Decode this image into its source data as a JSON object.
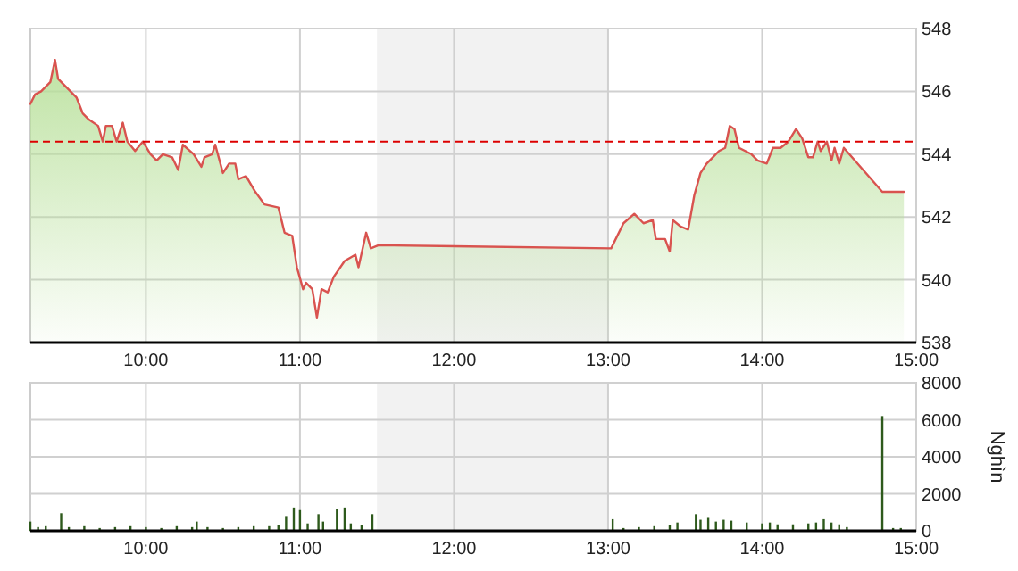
{
  "chart_data": [
    {
      "type": "area",
      "xlim": [
        9.25,
        15
      ],
      "xticks": [
        {
          "value": 10,
          "label": "10:00"
        },
        {
          "value": 11,
          "label": "11:00"
        },
        {
          "value": 12,
          "label": "12:00"
        },
        {
          "value": 13,
          "label": "13:00"
        },
        {
          "value": 14,
          "label": "14:00"
        },
        {
          "value": 15,
          "label": "15:00"
        }
      ],
      "ylim": [
        538,
        548
      ],
      "yticks": [
        538,
        540,
        542,
        544,
        546,
        548
      ],
      "grid": true,
      "ref_lines": [
        {
          "axis": "y",
          "value": 544.4,
          "color": "#dd0000",
          "line_style": "dashed"
        }
      ],
      "bands": [
        {
          "axis": "x",
          "from": 11.5,
          "to": 13,
          "color": "#f2f2f2"
        }
      ],
      "series": [
        {
          "color": "#d9534f",
          "x": [
            9.25,
            9.28,
            9.32,
            9.38,
            9.41,
            9.43,
            9.49,
            9.55,
            9.59,
            9.63,
            9.69,
            9.72,
            9.74,
            9.78,
            9.81,
            9.85,
            9.88,
            9.93,
            9.98,
            10.03,
            10.07,
            10.11,
            10.17,
            10.21,
            10.24,
            10.31,
            10.36,
            10.38,
            10.43,
            10.45,
            10.5,
            10.54,
            10.58,
            10.6,
            10.65,
            10.71,
            10.77,
            10.86,
            10.9,
            10.95,
            10.98,
            11.02,
            11.04,
            11.08,
            11.11,
            11.14,
            11.18,
            11.22,
            11.29,
            11.36,
            11.38,
            11.43,
            11.46,
            11.51,
            13.02,
            13.1,
            13.17,
            13.23,
            13.29,
            13.31,
            13.37,
            13.4,
            13.42,
            13.47,
            13.52,
            13.56,
            13.6,
            13.64,
            13.68,
            13.72,
            13.76,
            13.79,
            13.82,
            13.85,
            13.93,
            13.97,
            14.03,
            14.07,
            14.12,
            14.17,
            14.22,
            14.26,
            14.3,
            14.33,
            14.36,
            14.38,
            14.42,
            14.45,
            14.47,
            14.5,
            14.53,
            14.78,
            14.92
          ],
          "values": [
            545.6,
            545.9,
            546.0,
            546.3,
            547.0,
            546.4,
            546.1,
            545.8,
            545.3,
            545.1,
            544.9,
            544.4,
            544.9,
            544.9,
            544.4,
            545.0,
            544.4,
            544.1,
            544.4,
            544.0,
            543.8,
            544.0,
            543.9,
            543.5,
            544.3,
            544.0,
            543.6,
            543.9,
            544.0,
            544.3,
            543.4,
            543.7,
            543.7,
            543.2,
            543.3,
            542.8,
            542.4,
            542.3,
            541.5,
            541.4,
            540.4,
            539.7,
            539.9,
            539.7,
            538.8,
            539.7,
            539.6,
            540.1,
            540.6,
            540.8,
            540.4,
            541.5,
            541.0,
            541.1,
            541.0,
            541.8,
            542.1,
            541.8,
            541.9,
            541.3,
            541.3,
            540.9,
            541.9,
            541.7,
            541.6,
            542.7,
            543.4,
            543.7,
            543.9,
            544.1,
            544.2,
            544.9,
            544.8,
            544.2,
            544.0,
            543.8,
            543.7,
            544.2,
            544.2,
            544.4,
            544.8,
            544.5,
            543.9,
            543.9,
            544.4,
            544.1,
            544.4,
            543.8,
            544.2,
            543.7,
            544.2,
            542.8,
            542.8
          ]
        }
      ]
    },
    {
      "type": "bar",
      "ylabel": "Nghìn",
      "xlim": [
        9.25,
        15
      ],
      "xticks": [
        {
          "value": 10,
          "label": "10:00"
        },
        {
          "value": 11,
          "label": "11:00"
        },
        {
          "value": 12,
          "label": "12:00"
        },
        {
          "value": 13,
          "label": "13:00"
        },
        {
          "value": 14,
          "label": "14:00"
        },
        {
          "value": 15,
          "label": "15:00"
        }
      ],
      "ylim": [
        0,
        8000
      ],
      "yticks": [
        0,
        2000,
        4000,
        6000,
        8000
      ],
      "grid": true,
      "bands": [
        {
          "axis": "x",
          "from": 11.5,
          "to": 13,
          "color": "#f2f2f2"
        }
      ],
      "series": [
        {
          "color": "#2e5a1c",
          "x": [
            9.25,
            9.3,
            9.35,
            9.45,
            9.5,
            9.6,
            9.7,
            9.8,
            9.9,
            10.0,
            10.1,
            10.2,
            10.3,
            10.33,
            10.4,
            10.5,
            10.6,
            10.7,
            10.8,
            10.86,
            10.91,
            10.96,
            11.0,
            11.05,
            11.12,
            11.15,
            11.24,
            11.29,
            11.33,
            11.4,
            11.47,
            13.03,
            13.1,
            13.2,
            13.3,
            13.4,
            13.45,
            13.57,
            13.6,
            13.65,
            13.7,
            13.75,
            13.8,
            13.9,
            14.0,
            14.05,
            14.1,
            14.2,
            14.3,
            14.35,
            14.4,
            14.45,
            14.5,
            14.55,
            14.78,
            14.85,
            14.9
          ],
          "values": [
            500,
            200,
            250,
            950,
            200,
            250,
            150,
            200,
            250,
            200,
            150,
            250,
            200,
            500,
            200,
            150,
            200,
            250,
            250,
            300,
            800,
            1260,
            1120,
            400,
            900,
            500,
            1200,
            1260,
            400,
            300,
            900,
            630,
            150,
            200,
            250,
            300,
            450,
            900,
            600,
            700,
            500,
            600,
            550,
            450,
            400,
            450,
            350,
            350,
            400,
            450,
            630,
            450,
            350,
            200,
            6200,
            150,
            150
          ]
        }
      ]
    }
  ]
}
